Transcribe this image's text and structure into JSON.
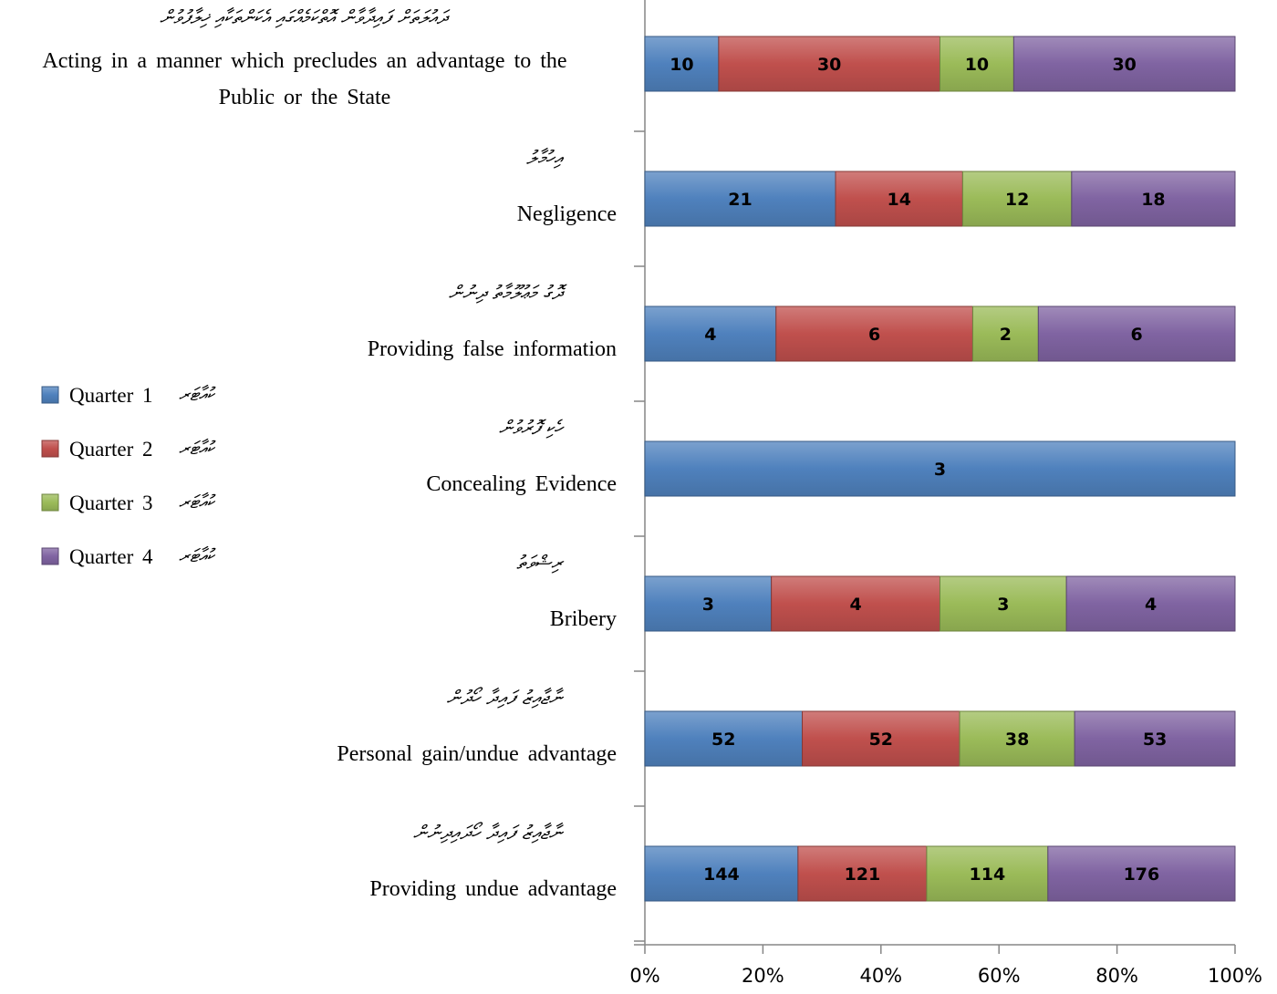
{
  "colors": {
    "q1": "#4F81BD",
    "q2": "#C0504D",
    "q3": "#9BBB59",
    "q4": "#8064A2",
    "axis": "#868686"
  },
  "chart_data": {
    "type": "bar",
    "orientation": "horizontal",
    "stacked": "percent",
    "title": "",
    "xlabel": "",
    "ylabel": "",
    "xlim": [
      0,
      100
    ],
    "x_ticks": [
      "0%",
      "20%",
      "40%",
      "60%",
      "80%",
      "100%"
    ],
    "grid": false,
    "legend_position": "left",
    "categories": [
      {
        "en": "Acting in a manner which precludes an advantage to the Public or the State",
        "dv": "ދައުލަތަށް ފައިދާވާން އޮތްކަމެއްގައި އެކަންތަކާއި ޚިލާފުވުން"
      },
      {
        "en": "Negligence",
        "dv": "އިހުމާލު"
      },
      {
        "en": "Providing false information",
        "dv": "ދޮގު މަޢުލޫމާތު ދިނުން"
      },
      {
        "en": "Concealing Evidence",
        "dv": "ހެކި ފޮރުވުން"
      },
      {
        "en": "Bribery",
        "dv": "ރިޝްވަތު"
      },
      {
        "en": "Personal gain/undue advantage",
        "dv": "ނާޖާއިޒު ފައިދާ ހޯދުން"
      },
      {
        "en": "Providing undue advantage",
        "dv": "ނާޖާއިޒު ފައިދާ ހޯދައިދިނުން"
      }
    ],
    "series": [
      {
        "name": "Quarter 1",
        "name_dv": "ކުއާޓަރ",
        "color_key": "q1",
        "values": [
          10,
          21,
          4,
          3,
          3,
          52,
          144
        ]
      },
      {
        "name": "Quarter 2",
        "name_dv": "ކުއާޓަރ",
        "color_key": "q2",
        "values": [
          30,
          14,
          6,
          0,
          4,
          52,
          121
        ]
      },
      {
        "name": "Quarter 3",
        "name_dv": "ކުއާޓަރ",
        "color_key": "q3",
        "values": [
          10,
          12,
          2,
          0,
          3,
          38,
          114
        ]
      },
      {
        "name": "Quarter 4",
        "name_dv": "ކުއާޓަރ",
        "color_key": "q4",
        "values": [
          30,
          18,
          6,
          0,
          4,
          53,
          176
        ]
      }
    ]
  }
}
